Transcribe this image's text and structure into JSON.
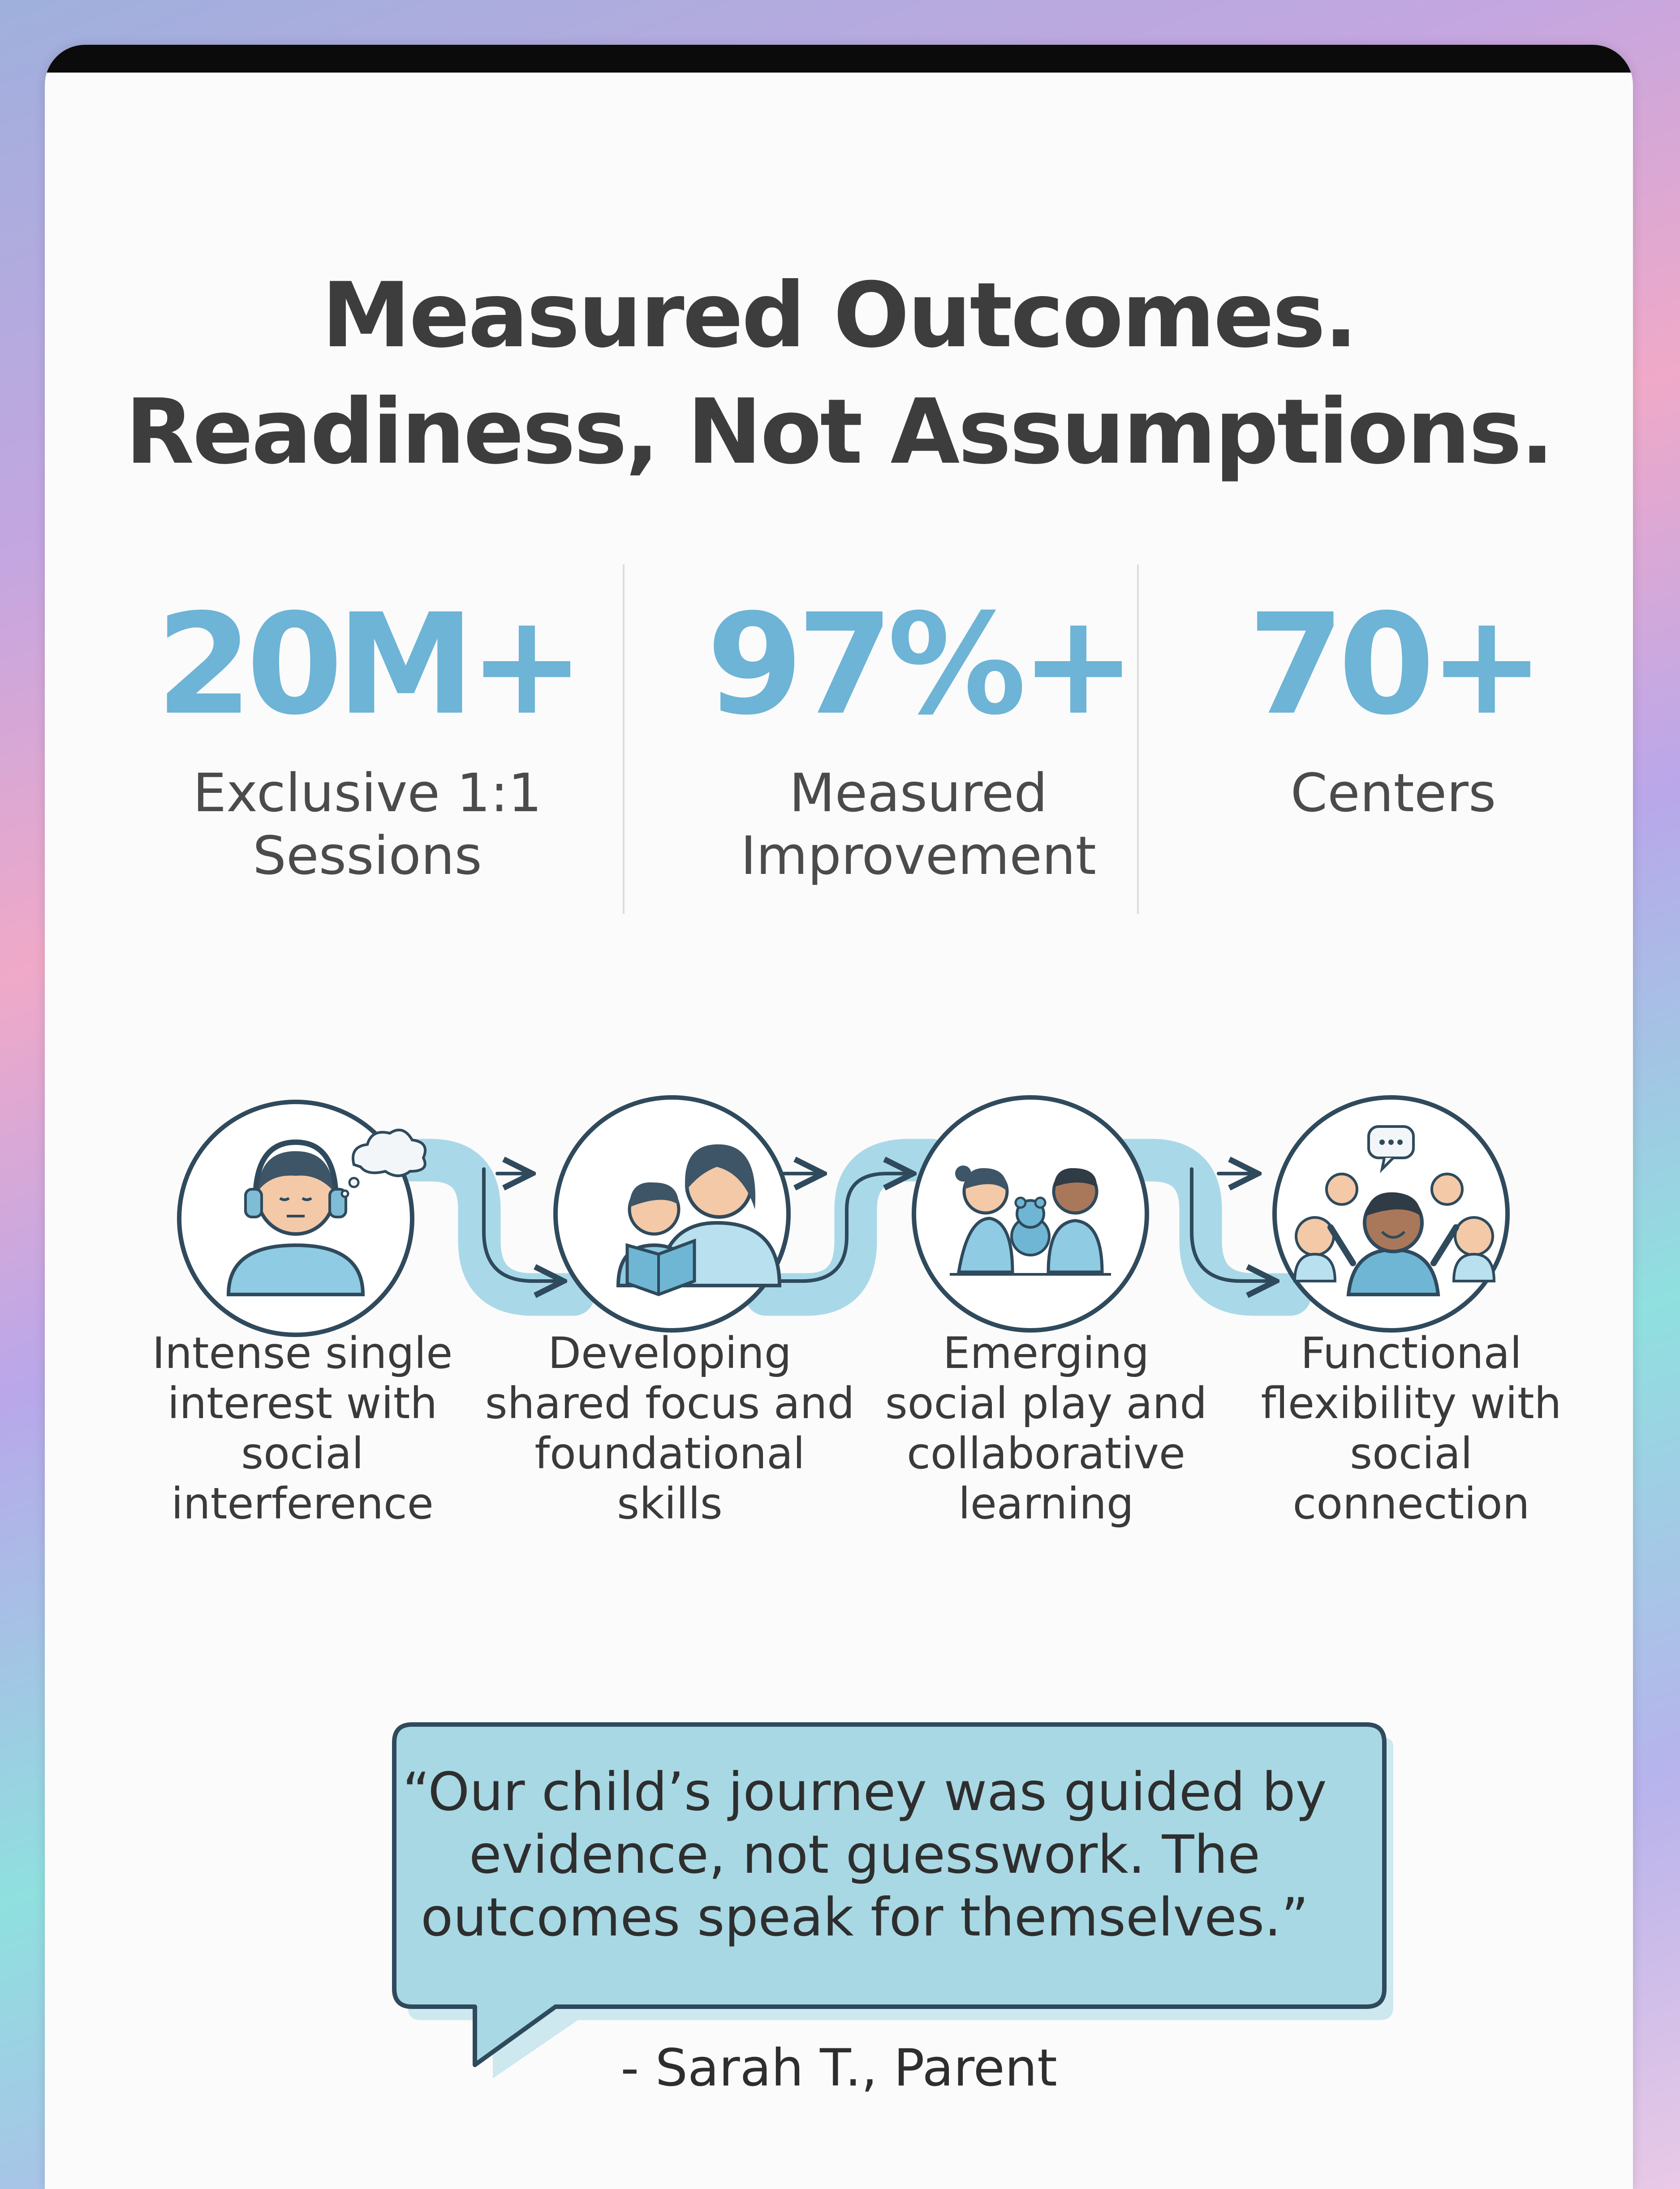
{
  "headline": {
    "line1": "Measured Outcomes.",
    "line2": "Readiness, Not Assumptions."
  },
  "stats": [
    {
      "value": "20M+",
      "label_line1": "Exclusive 1:1",
      "label_line2": "Sessions"
    },
    {
      "value": "97%+",
      "label_line1": "Measured",
      "label_line2": "Improvement"
    },
    {
      "value": "70+",
      "label_line1": "Centers",
      "label_line2": ""
    }
  ],
  "journey": {
    "steps": [
      {
        "icon": "child-headphones-thought-icon",
        "lines": [
          "Intense single",
          "interest with",
          "social",
          "interference"
        ]
      },
      {
        "icon": "parent-child-reading-icon",
        "lines": [
          "Developing",
          "shared focus and",
          "foundational",
          "skills"
        ]
      },
      {
        "icon": "children-playing-teddy-icon",
        "lines": [
          "Emerging",
          "social play and",
          "collaborative",
          "learning"
        ]
      },
      {
        "icon": "child-group-chat-icon",
        "lines": [
          "Functional",
          "flexibility with",
          "social",
          "connection"
        ]
      }
    ]
  },
  "testimonial": {
    "quote_line1": "“Our child’s journey was guided by",
    "quote_line2": "evidence, not guesswork. The",
    "quote_line3": "outcomes speak for themselves.”",
    "author": "- Sarah T., Parent"
  },
  "colors": {
    "accent": "#6db4d6",
    "path": "#a9d9e8",
    "outline": "#2f4a5c",
    "bubble": "#a8d8e4",
    "heading": "#3d3d3d"
  }
}
